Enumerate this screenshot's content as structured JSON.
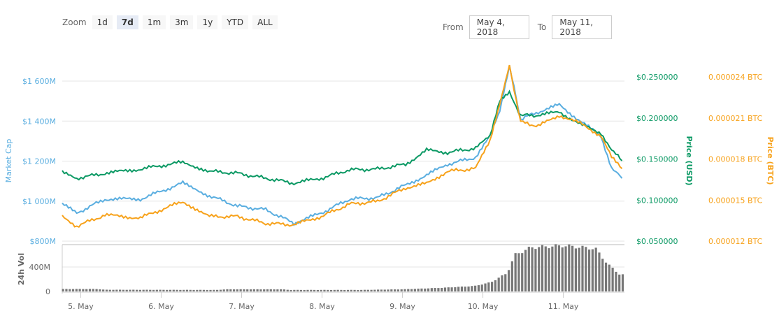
{
  "toolbar": {
    "zoom_label": "Zoom",
    "buttons": [
      "1d",
      "7d",
      "1m",
      "3m",
      "1y",
      "YTD",
      "ALL"
    ],
    "active": "7d",
    "from_label": "From",
    "from_value": "May 4, 2018",
    "to_label": "To",
    "to_value": "May 11, 2018"
  },
  "colors": {
    "market_cap": "#5aaee0",
    "price_usd": "#0b9964",
    "price_btc": "#f7a21b",
    "volume": "#777777"
  },
  "chart_data": {
    "type": "line",
    "x_label_unit": "day of May 2018",
    "xlim": [
      4.77,
      11.76
    ],
    "x_ticks": [
      {
        "v": 5,
        "label": "5. May"
      },
      {
        "v": 6,
        "label": "6. May"
      },
      {
        "v": 7,
        "label": "7. May"
      },
      {
        "v": 8,
        "label": "8. May"
      },
      {
        "v": 9,
        "label": "9. May"
      },
      {
        "v": 10,
        "label": "10. May"
      },
      {
        "v": 11,
        "label": "11. May"
      }
    ],
    "x": [
      4.77,
      4.95,
      5.3,
      5.74,
      6.27,
      6.6,
      6.95,
      7.3,
      7.65,
      7.99,
      8.34,
      8.69,
      9.04,
      9.3,
      9.56,
      9.91,
      10.09,
      10.21,
      10.33,
      10.47,
      10.69,
      10.95,
      11.21,
      11.47,
      11.6,
      11.73
    ],
    "series": [
      {
        "name": "Market Cap",
        "axis": "Market Cap",
        "unit": "M USD",
        "values": [
          985,
          940,
          1010,
          1010,
          1090,
          1027,
          975,
          957,
          890,
          940,
          1010,
          1017,
          1080,
          1130,
          1184,
          1219,
          1324,
          1446,
          1673,
          1411,
          1446,
          1481,
          1400,
          1324,
          1167,
          1114
        ]
      },
      {
        "name": "Price (USD)",
        "axis": "Price (USD)",
        "values": [
          0.1334,
          0.1266,
          0.1326,
          0.1377,
          0.1462,
          0.1351,
          0.1326,
          0.1266,
          0.1206,
          0.1266,
          0.1368,
          0.1377,
          0.1436,
          0.1606,
          0.158,
          0.1632,
          0.1777,
          0.2202,
          0.23,
          0.2032,
          0.2032,
          0.2074,
          0.1921,
          0.1819,
          0.1606,
          0.1479
        ]
      },
      {
        "name": "Price (BTC)",
        "axis": "Price (BTC)",
        "values": [
          1.38e-05,
          1.31e-05,
          1.39e-05,
          1.37e-05,
          1.49e-05,
          1.38e-05,
          1.38e-05,
          1.33e-05,
          1.32e-05,
          1.38e-05,
          1.47e-05,
          1.49e-05,
          1.59e-05,
          1.62e-05,
          1.71e-05,
          1.73e-05,
          1.94e-05,
          2.2e-05,
          2.48e-05,
          2.07e-05,
          2.04e-05,
          2.12e-05,
          2.06e-05,
          1.97e-05,
          1.81e-05,
          1.73e-05
        ]
      }
    ],
    "axes": {
      "market_cap": {
        "title": "Market Cap",
        "ylim": [
          800,
          1700
        ],
        "ticks": [
          {
            "v": 800,
            "label": "$800M"
          },
          {
            "v": 1000,
            "label": "$1 000M"
          },
          {
            "v": 1200,
            "label": "$1 200M"
          },
          {
            "v": 1400,
            "label": "$1 400M"
          },
          {
            "v": 1600,
            "label": "$1 600M"
          }
        ]
      },
      "price_usd": {
        "title": "Price (USD)",
        "ticks": [
          {
            "v": 0.05,
            "label": "$0.050000"
          },
          {
            "v": 0.1,
            "label": "$0.100000"
          },
          {
            "v": 0.15,
            "label": "$0.150000"
          },
          {
            "v": 0.2,
            "label": "$0.200000"
          },
          {
            "v": 0.25,
            "label": "$0.250000"
          }
        ]
      },
      "price_btc": {
        "title": "Price (BTC)",
        "ticks": [
          {
            "v": 1.2e-05,
            "label": "0.000012 BTC"
          },
          {
            "v": 1.5e-05,
            "label": "0.000015 BTC"
          },
          {
            "v": 1.8e-05,
            "label": "0.000018 BTC"
          },
          {
            "v": 2.1e-05,
            "label": "0.000021 BTC"
          },
          {
            "v": 2.4e-05,
            "label": "0.000024 BTC"
          }
        ]
      },
      "volume": {
        "title": "24h Vol",
        "ylim": [
          0,
          800
        ],
        "ticks": [
          {
            "v": 0,
            "label": "0"
          },
          {
            "v": 400,
            "label": "400M"
          }
        ]
      }
    },
    "volume": {
      "unit": "M USD",
      "x": [
        4.77,
        5.2,
        5.3,
        6.7,
        6.8,
        7.5,
        7.6,
        8.5,
        9.0,
        9.5,
        9.9,
        10.1,
        10.3,
        10.4,
        10.6,
        11.0,
        11.4,
        11.55,
        11.7,
        11.76
      ],
      "values": [
        40,
        40,
        28,
        25,
        35,
        35,
        25,
        25,
        35,
        60,
        90,
        150,
        300,
        600,
        720,
        750,
        700,
        450,
        280,
        270
      ]
    }
  }
}
